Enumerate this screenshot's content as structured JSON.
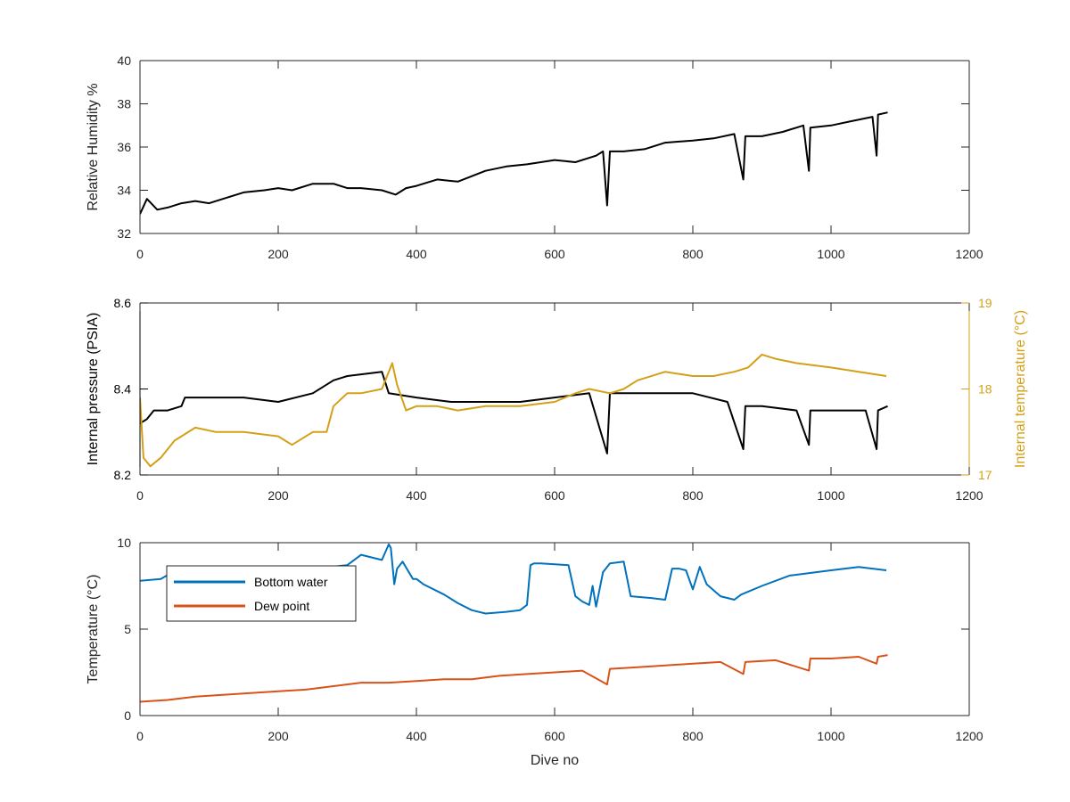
{
  "chart_data": [
    {
      "type": "line",
      "title": "",
      "xlabel": "",
      "ylabel": "Relative Humidity %",
      "xlim": [
        0,
        1200
      ],
      "ylim": [
        32,
        40
      ],
      "xticks": [
        0,
        200,
        400,
        600,
        800,
        1000,
        1200
      ],
      "xtick_labels": [
        "0",
        "200",
        "400",
        "600",
        "800",
        "1000",
        "1200"
      ],
      "yticks": [
        32,
        34,
        36,
        38,
        40
      ],
      "ytick_labels": [
        "32",
        "34",
        "36",
        "38",
        "40"
      ],
      "grid": false,
      "series": [
        {
          "color": "#000000",
          "x": [
            0,
            10,
            25,
            40,
            60,
            80,
            100,
            120,
            150,
            180,
            200,
            220,
            250,
            280,
            300,
            320,
            350,
            370,
            385,
            400,
            430,
            460,
            500,
            530,
            560,
            600,
            630,
            660,
            670,
            676,
            680,
            700,
            730,
            760,
            800,
            830,
            860,
            873,
            876,
            900,
            930,
            960,
            968,
            970,
            1000,
            1030,
            1060,
            1066,
            1068,
            1082
          ],
          "y": [
            32.9,
            33.6,
            33.1,
            33.2,
            33.4,
            33.5,
            33.4,
            33.6,
            33.9,
            34.0,
            34.1,
            34.0,
            34.3,
            34.3,
            34.1,
            34.1,
            34.0,
            33.8,
            34.1,
            34.2,
            34.5,
            34.4,
            34.9,
            35.1,
            35.2,
            35.4,
            35.3,
            35.6,
            35.8,
            33.3,
            35.8,
            35.8,
            35.9,
            36.2,
            36.3,
            36.4,
            36.6,
            34.5,
            36.5,
            36.5,
            36.7,
            37.0,
            34.9,
            36.9,
            37.0,
            37.2,
            37.4,
            35.6,
            37.5,
            37.6
          ]
        }
      ]
    },
    {
      "type": "line",
      "title": "",
      "xlabel": "",
      "ylabel": "Internal pressure (PSIA)",
      "ylabel_right": "Internal temperature (°C)",
      "xlim": [
        0,
        1200
      ],
      "ylim": [
        8.2,
        8.6
      ],
      "ylim_right": [
        17,
        19
      ],
      "xticks": [
        0,
        200,
        400,
        600,
        800,
        1000,
        1200
      ],
      "xtick_labels": [
        "0",
        "200",
        "400",
        "600",
        "800",
        "1000",
        "1200"
      ],
      "yticks": [
        8.2,
        8.4,
        8.6
      ],
      "ytick_labels": [
        "8.2",
        "8.4",
        "8.6"
      ],
      "yticks_right": [
        17,
        18,
        19
      ],
      "ytick_labels_right": [
        "17",
        "18",
        "19"
      ],
      "grid": false,
      "series": [
        {
          "axis": "left",
          "color": "#000000",
          "x": [
            0,
            10,
            20,
            40,
            60,
            65,
            100,
            150,
            200,
            250,
            280,
            300,
            350,
            360,
            400,
            450,
            500,
            550,
            600,
            650,
            676,
            680,
            700,
            750,
            800,
            850,
            873,
            876,
            900,
            950,
            968,
            970,
            1000,
            1050,
            1066,
            1068,
            1082
          ],
          "y": [
            8.32,
            8.33,
            8.35,
            8.35,
            8.36,
            8.38,
            8.38,
            8.38,
            8.37,
            8.39,
            8.42,
            8.43,
            8.44,
            8.39,
            8.38,
            8.37,
            8.37,
            8.37,
            8.38,
            8.39,
            8.25,
            8.39,
            8.39,
            8.39,
            8.39,
            8.37,
            8.26,
            8.36,
            8.36,
            8.35,
            8.27,
            8.35,
            8.35,
            8.35,
            8.26,
            8.35,
            8.36
          ]
        },
        {
          "axis": "right",
          "color": "#D4A017",
          "x": [
            0,
            5,
            15,
            30,
            50,
            60,
            80,
            110,
            150,
            200,
            220,
            250,
            270,
            280,
            300,
            320,
            350,
            365,
            372,
            385,
            400,
            430,
            460,
            500,
            550,
            600,
            630,
            650,
            680,
            700,
            720,
            760,
            800,
            830,
            860,
            880,
            900,
            920,
            950,
            1000,
            1040,
            1080
          ],
          "y": [
            17.9,
            17.2,
            17.1,
            17.2,
            17.4,
            17.45,
            17.55,
            17.5,
            17.5,
            17.45,
            17.35,
            17.5,
            17.5,
            17.8,
            17.95,
            17.95,
            18.0,
            18.3,
            18.05,
            17.75,
            17.8,
            17.8,
            17.75,
            17.8,
            17.8,
            17.85,
            17.95,
            18.0,
            17.95,
            18.0,
            18.1,
            18.2,
            18.15,
            18.15,
            18.2,
            18.25,
            18.4,
            18.35,
            18.3,
            18.25,
            18.2,
            18.15
          ]
        }
      ]
    },
    {
      "type": "line",
      "title": "",
      "xlabel": "Dive no",
      "ylabel": "Temperature (°C)",
      "xlim": [
        0,
        1200
      ],
      "ylim": [
        0,
        10
      ],
      "xticks": [
        0,
        200,
        400,
        600,
        800,
        1000,
        1200
      ],
      "xtick_labels": [
        "0",
        "200",
        "400",
        "600",
        "800",
        "1000",
        "1200"
      ],
      "yticks": [
        0,
        5,
        10
      ],
      "ytick_labels": [
        "0",
        "5",
        "10"
      ],
      "grid": false,
      "legend_position": "top-left",
      "series": [
        {
          "name": "Bottom water",
          "color": "#0072BD",
          "x": [
            0,
            30,
            60,
            100,
            150,
            200,
            250,
            300,
            320,
            350,
            360,
            363,
            368,
            372,
            380,
            395,
            400,
            410,
            440,
            460,
            480,
            500,
            530,
            550,
            560,
            565,
            570,
            580,
            620,
            630,
            640,
            650,
            655,
            660,
            670,
            680,
            700,
            710,
            740,
            760,
            770,
            780,
            790,
            800,
            810,
            820,
            840,
            860,
            870,
            900,
            940,
            1000,
            1040,
            1080
          ],
          "y": [
            7.8,
            7.9,
            8.6,
            8.6,
            8.6,
            8.5,
            8.5,
            8.7,
            9.3,
            9.0,
            9.9,
            9.7,
            7.6,
            8.5,
            8.9,
            7.9,
            7.9,
            7.6,
            7.0,
            6.5,
            6.1,
            5.9,
            6.0,
            6.1,
            6.4,
            8.7,
            8.8,
            8.8,
            8.7,
            6.9,
            6.6,
            6.4,
            7.5,
            6.3,
            8.3,
            8.8,
            8.9,
            6.9,
            6.8,
            6.7,
            8.5,
            8.5,
            8.4,
            7.3,
            8.6,
            7.6,
            6.9,
            6.7,
            7.0,
            7.5,
            8.1,
            8.4,
            8.6,
            8.4
          ]
        },
        {
          "name": "Dew point",
          "color": "#D95319",
          "x": [
            0,
            40,
            80,
            120,
            160,
            200,
            240,
            280,
            320,
            360,
            400,
            440,
            480,
            520,
            560,
            600,
            640,
            676,
            680,
            720,
            760,
            800,
            840,
            873,
            876,
            920,
            968,
            970,
            1000,
            1040,
            1066,
            1068,
            1082
          ],
          "y": [
            0.8,
            0.9,
            1.1,
            1.2,
            1.3,
            1.4,
            1.5,
            1.7,
            1.9,
            1.9,
            2.0,
            2.1,
            2.1,
            2.3,
            2.4,
            2.5,
            2.6,
            1.8,
            2.7,
            2.8,
            2.9,
            3.0,
            3.1,
            2.4,
            3.1,
            3.2,
            2.6,
            3.3,
            3.3,
            3.4,
            3.0,
            3.4,
            3.5
          ]
        }
      ]
    }
  ]
}
